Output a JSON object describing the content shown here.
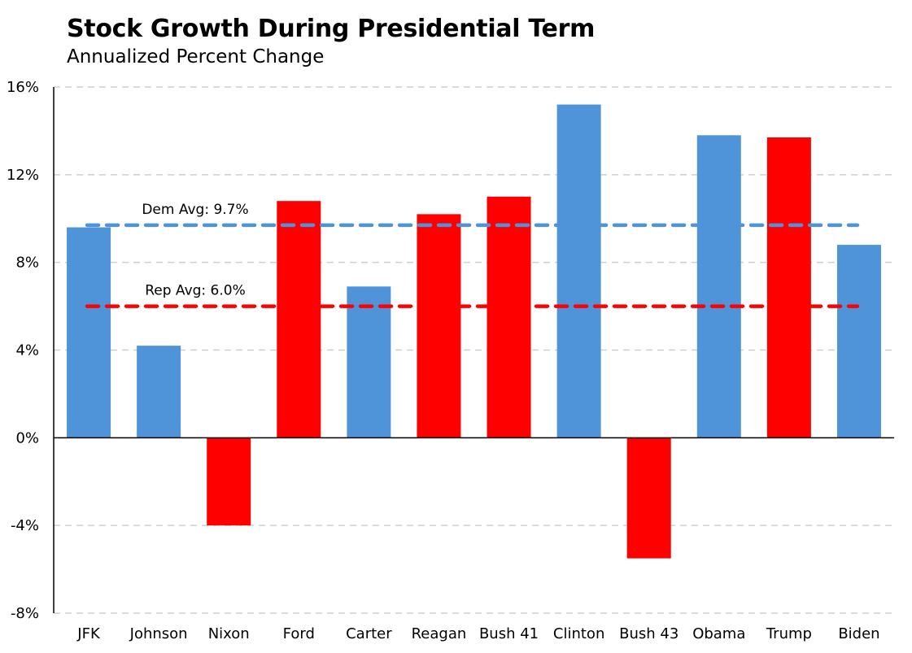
{
  "chart_data": {
    "type": "bar",
    "title": "Stock Growth During Presidential Term",
    "subtitle": "Annualized Percent Change",
    "categories": [
      "JFK",
      "Johnson",
      "Nixon",
      "Ford",
      "Carter",
      "Reagan",
      "Bush 41",
      "Clinton",
      "Bush 43",
      "Obama",
      "Trump",
      "Biden"
    ],
    "values": [
      9.6,
      4.2,
      -4.0,
      10.8,
      6.9,
      10.2,
      11.0,
      15.2,
      -5.5,
      13.8,
      13.7,
      8.8
    ],
    "party": [
      "Dem",
      "Dem",
      "Rep",
      "Rep",
      "Dem",
      "Rep",
      "Rep",
      "Dem",
      "Rep",
      "Dem",
      "Rep",
      "Dem"
    ],
    "colors": {
      "Dem": "#4F94D9",
      "Rep": "#FF0000"
    },
    "ylim": [
      -8,
      16
    ],
    "yticks": [
      16,
      12,
      8,
      4,
      0,
      -4,
      -8
    ],
    "ytick_labels": [
      "16%",
      "12%",
      "8%",
      "4%",
      "0%",
      "-4%",
      "-8%"
    ],
    "xlabel": "",
    "ylabel": "",
    "grid": "horizontal-dashed",
    "reference_lines": [
      {
        "label": "Dem Avg: 9.7%",
        "value": 9.7,
        "color": "#4F94D9"
      },
      {
        "label": "Rep Avg: 6.0%",
        "value": 6.0,
        "color": "#FF0000"
      }
    ]
  }
}
